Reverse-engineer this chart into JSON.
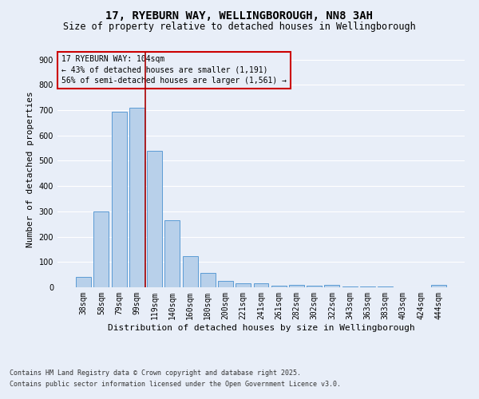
{
  "title_line1": "17, RYEBURN WAY, WELLINGBOROUGH, NN8 3AH",
  "title_line2": "Size of property relative to detached houses in Wellingborough",
  "xlabel": "Distribution of detached houses by size in Wellingborough",
  "ylabel": "Number of detached properties",
  "categories": [
    "38sqm",
    "58sqm",
    "79sqm",
    "99sqm",
    "119sqm",
    "140sqm",
    "160sqm",
    "180sqm",
    "200sqm",
    "221sqm",
    "241sqm",
    "261sqm",
    "282sqm",
    "302sqm",
    "322sqm",
    "343sqm",
    "363sqm",
    "383sqm",
    "403sqm",
    "424sqm",
    "444sqm"
  ],
  "values": [
    42,
    300,
    695,
    710,
    540,
    265,
    122,
    57,
    25,
    15,
    17,
    7,
    10,
    5,
    10,
    3,
    2,
    3,
    1,
    1,
    8
  ],
  "bar_color": "#b8d0ea",
  "bar_edge_color": "#5b9bd5",
  "background_color": "#e8eef8",
  "grid_color": "#ffffff",
  "vline_x": 3.5,
  "vline_color": "#aa0000",
  "annotation_text": "17 RYEBURN WAY: 104sqm\n← 43% of detached houses are smaller (1,191)\n56% of semi-detached houses are larger (1,561) →",
  "annotation_box_color": "#cc0000",
  "ylim": [
    0,
    930
  ],
  "yticks": [
    0,
    100,
    200,
    300,
    400,
    500,
    600,
    700,
    800,
    900
  ],
  "footer_line1": "Contains HM Land Registry data © Crown copyright and database right 2025.",
  "footer_line2": "Contains public sector information licensed under the Open Government Licence v3.0.",
  "title_fontsize": 10,
  "subtitle_fontsize": 8.5,
  "axis_label_fontsize": 8,
  "tick_fontsize": 7,
  "annotation_fontsize": 7,
  "footer_fontsize": 6
}
